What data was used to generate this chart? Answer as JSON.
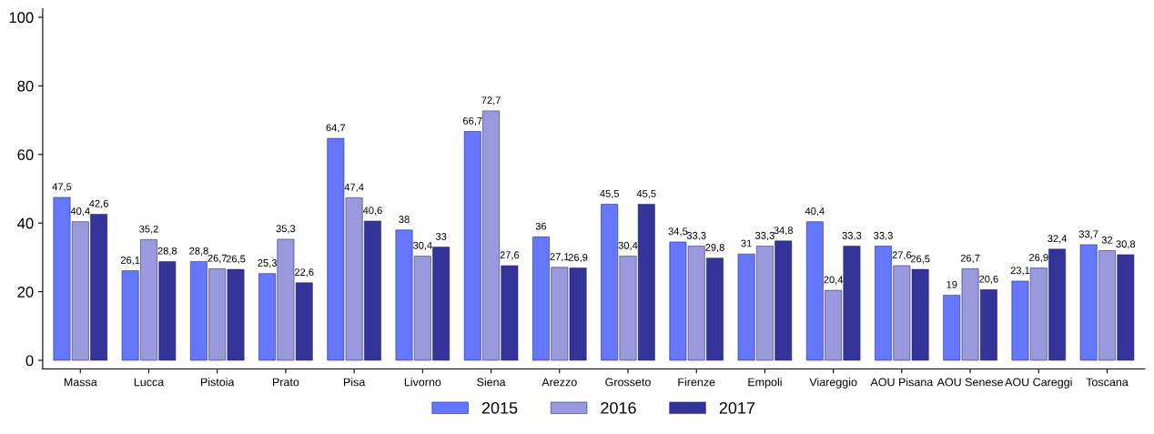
{
  "chart_data": {
    "type": "bar",
    "categories": [
      "Massa",
      "Lucca",
      "Pistoia",
      "Prato",
      "Pisa",
      "Livorno",
      "Siena",
      "Arezzo",
      "Grosseto",
      "Firenze",
      "Empoli",
      "Viareggio",
      "AOU Pisana",
      "AOU Senese",
      "AOU Careggi",
      "Toscana"
    ],
    "series": [
      {
        "name": "2015",
        "color": "#6677ff",
        "values": [
          47.5,
          26.1,
          28.8,
          25.3,
          64.7,
          38,
          66.7,
          36,
          45.5,
          34.5,
          31,
          40.4,
          33.3,
          19,
          23.1,
          33.7
        ],
        "value_labels": [
          "47,5",
          "26,1",
          "28,8",
          "25,3",
          "64,7",
          "38",
          "66,7",
          "36",
          "45,5",
          "34,5",
          "31",
          "40,4",
          "33,3",
          "19",
          "23,1",
          "33,7"
        ]
      },
      {
        "name": "2016",
        "color": "#9999dd",
        "values": [
          40.4,
          35.2,
          26.7,
          35.3,
          47.4,
          30.4,
          72.7,
          27.1,
          30.4,
          33.3,
          33.3,
          20.4,
          27.6,
          26.7,
          26.9,
          32
        ],
        "value_labels": [
          "40,4",
          "35,2",
          "26,7",
          "35,3",
          "47,4",
          "30,4",
          "72,7",
          "27,1",
          "30,4",
          "33,3",
          "33,3",
          "20,4",
          "27,6",
          "26,7",
          "26,9",
          "32"
        ]
      },
      {
        "name": "2017",
        "color": "#333399",
        "values": [
          42.6,
          28.8,
          26.5,
          22.6,
          40.6,
          33,
          27.6,
          26.9,
          45.5,
          29.8,
          34.8,
          33.3,
          26.5,
          20.6,
          32.4,
          30.8
        ],
        "value_labels": [
          "42,6",
          "28,8",
          "26,5",
          "22,6",
          "40,6",
          "33",
          "27,6",
          "26,9",
          "45,5",
          "29,8",
          "34,8",
          "33,3",
          "26,5",
          "20,6",
          "32,4",
          "30,8"
        ]
      }
    ],
    "ylim": [
      -2.5,
      102.5
    ],
    "yticks": [
      0,
      20,
      40,
      60,
      80,
      100
    ],
    "grid": false,
    "legend": "bottom"
  }
}
